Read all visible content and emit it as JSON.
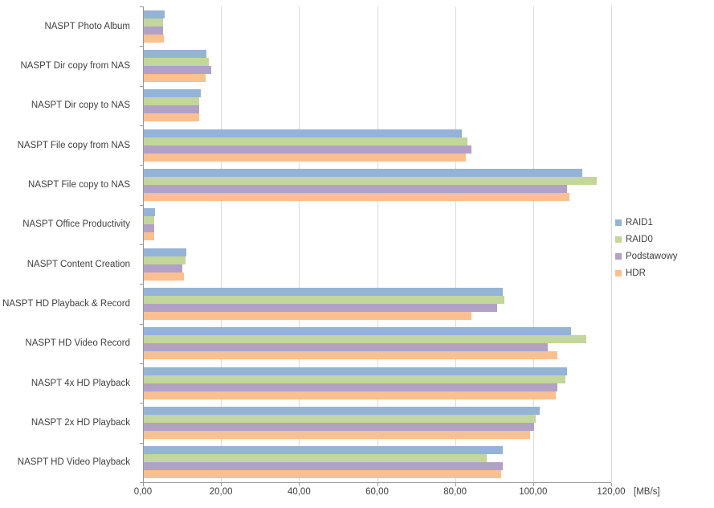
{
  "chart_data": {
    "type": "bar",
    "orientation": "horizontal",
    "title": "",
    "xlabel": "[MB/s]",
    "ylabel": "",
    "xlim": [
      0,
      120
    ],
    "grid": true,
    "legend_position": "right",
    "xticks": [
      0,
      20,
      40,
      60,
      80,
      100,
      120
    ],
    "xtick_labels": [
      "0,00",
      "20,00",
      "40,00",
      "60,00",
      "80,00",
      "100,00",
      "120,00"
    ],
    "categories": [
      "NASPT Photo Album",
      "NASPT Dir copy from NAS",
      "NASPT Dir copy to NAS",
      "NASPT File copy from NAS",
      "NASPT File copy to NAS",
      "NASPT Office Productivity",
      "NASPT Content Creation",
      "NASPT HD Playback & Record",
      "NASPT HD Video Record",
      "NASPT 4x HD Playback",
      "NASPT 2x HD Playback",
      "NASPT HD Video Playback"
    ],
    "series": [
      {
        "name": "RAID1",
        "color": "#95b3d7",
        "values": [
          5.4,
          16.1,
          14.7,
          81.5,
          112.3,
          2.8,
          11.0,
          92.0,
          109.5,
          108.5,
          101.5,
          92.0
        ]
      },
      {
        "name": "RAID0",
        "color": "#c3d69b",
        "values": [
          5.0,
          16.6,
          14.2,
          83.0,
          116.0,
          2.6,
          10.7,
          92.5,
          113.5,
          108.0,
          100.5,
          87.8
        ]
      },
      {
        "name": "Podstawowy",
        "color": "#b2a1c7",
        "values": [
          5.0,
          17.3,
          14.1,
          84.0,
          108.5,
          2.7,
          9.9,
          90.5,
          103.5,
          106.0,
          100.0,
          92.1
        ]
      },
      {
        "name": "HDR",
        "color": "#fac090",
        "values": [
          5.2,
          15.8,
          14.1,
          82.5,
          109.0,
          2.7,
          10.2,
          84.0,
          106.0,
          105.5,
          99.0,
          91.6
        ]
      }
    ]
  },
  "axis": {
    "unit_label": "[MB/s]"
  }
}
